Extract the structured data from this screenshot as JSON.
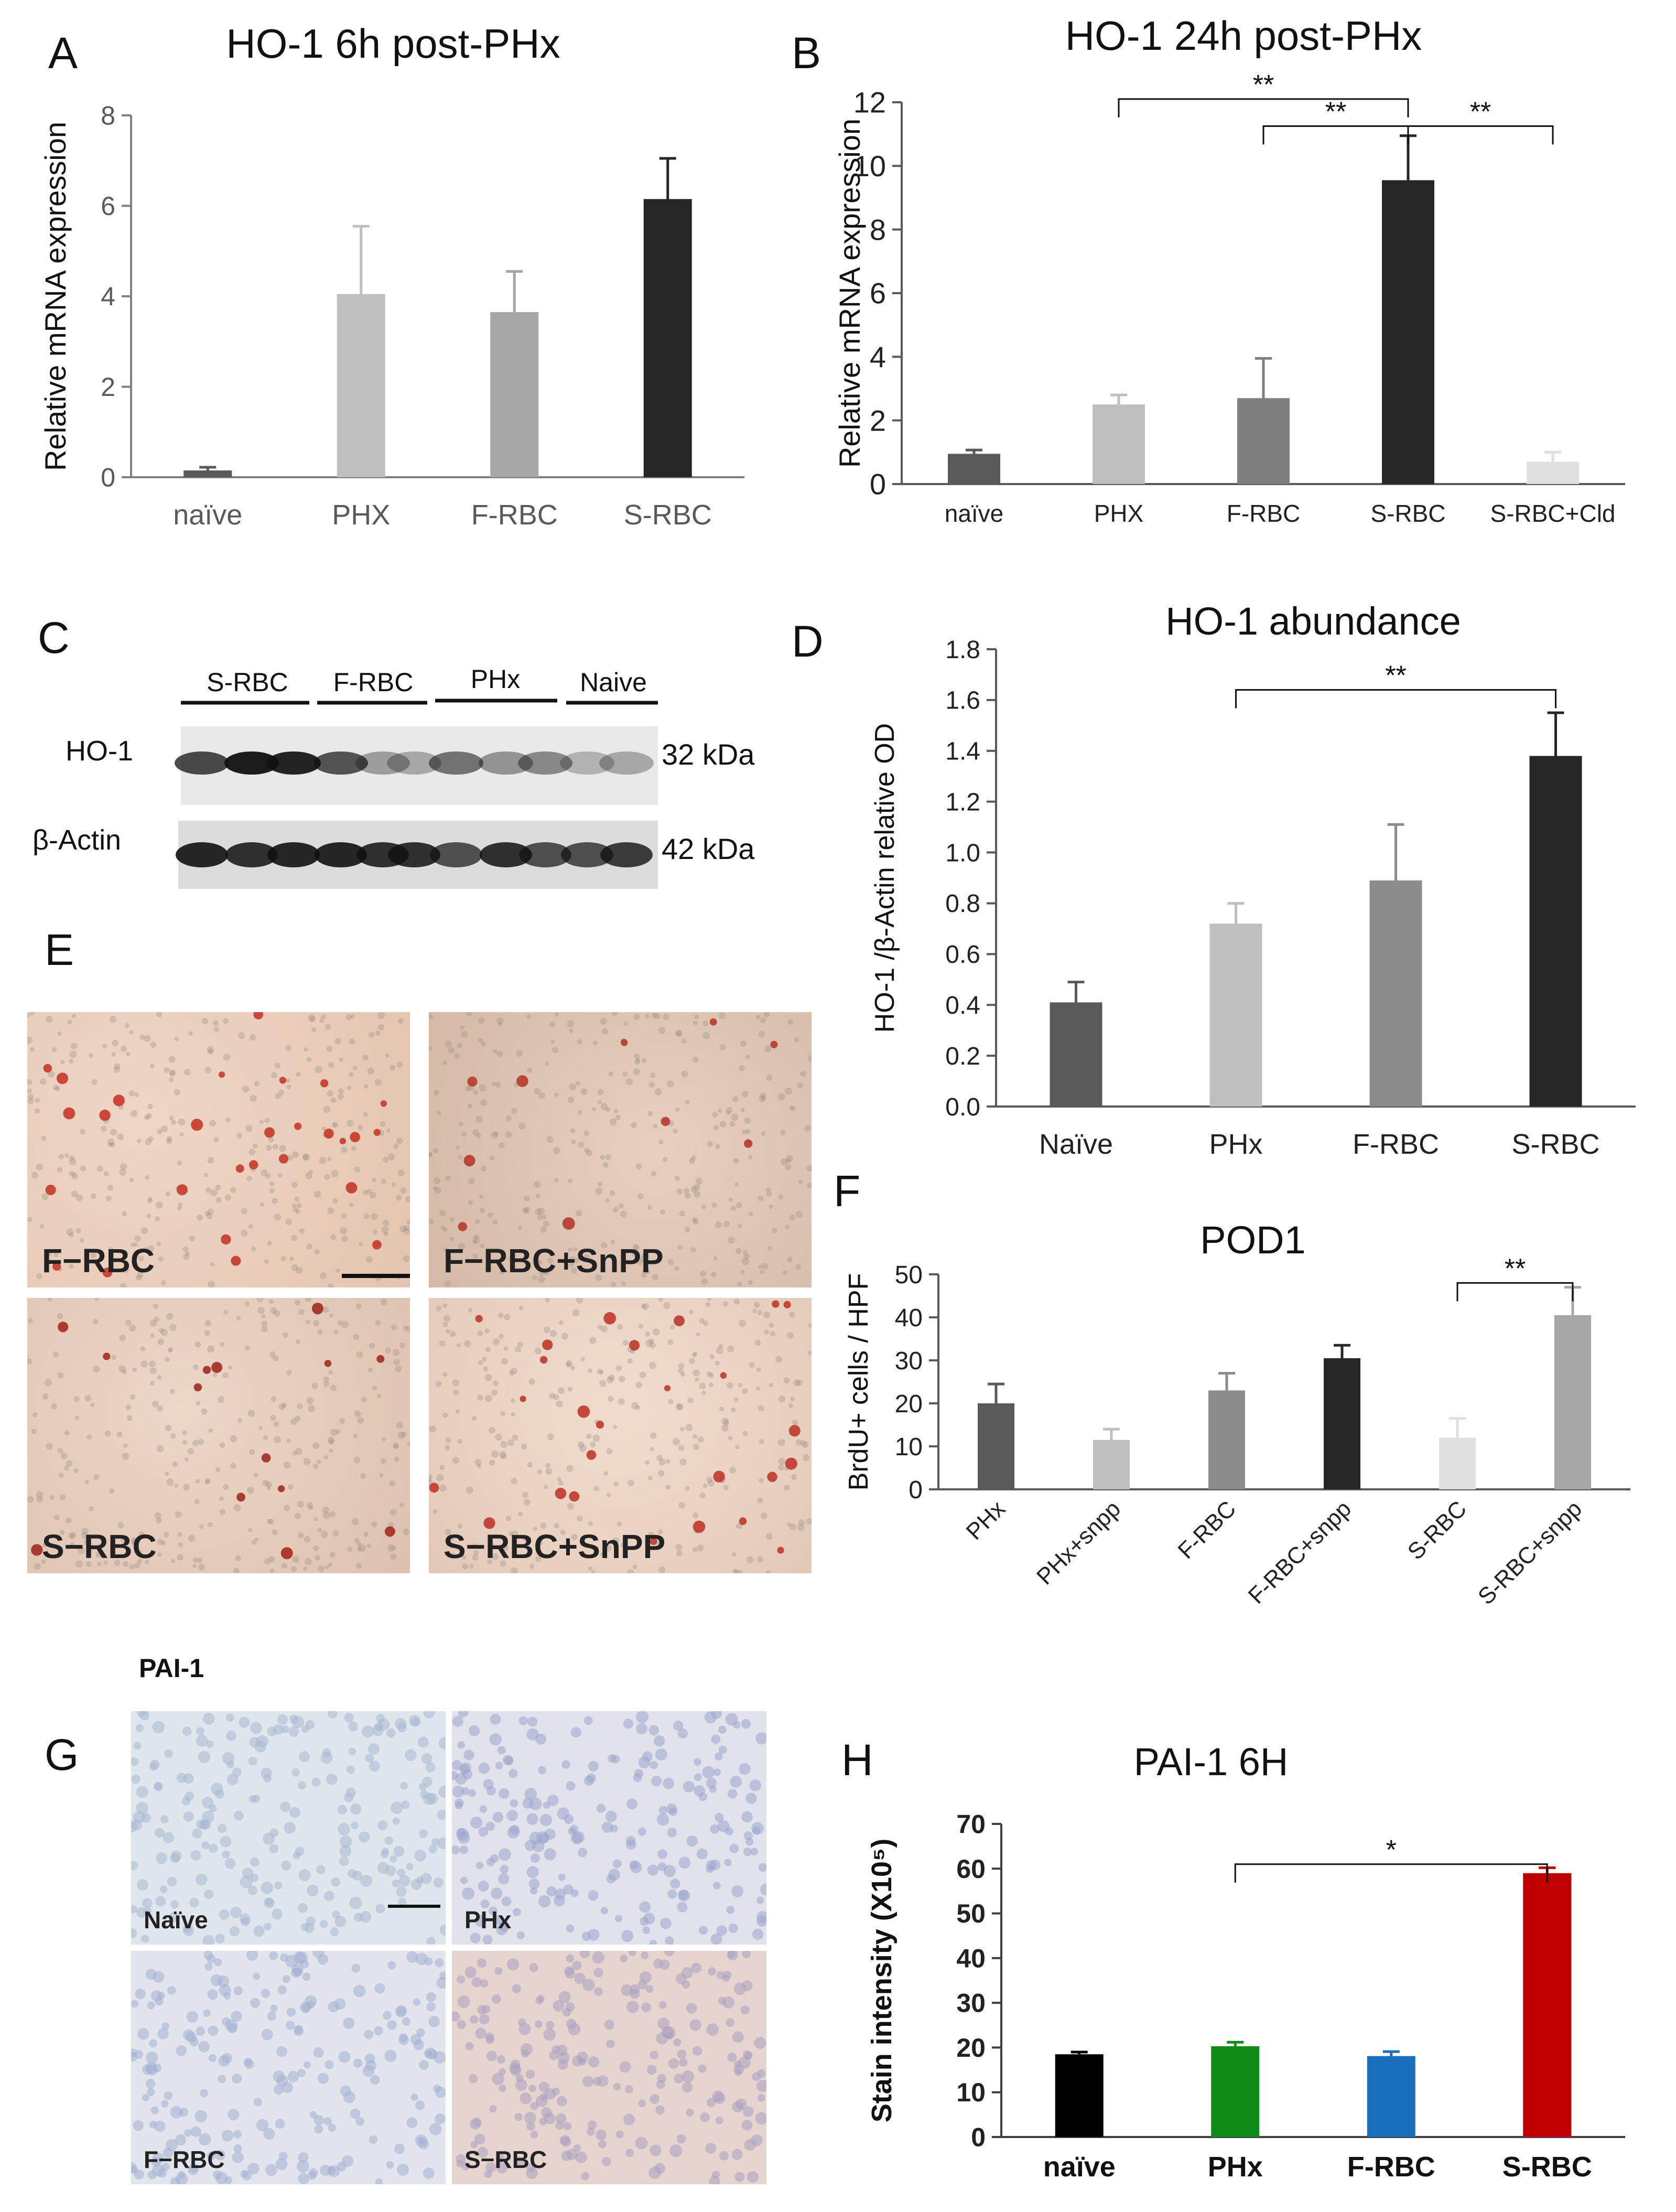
{
  "panel_letters": {
    "A": "A",
    "B": "B",
    "C": "C",
    "D": "D",
    "E": "E",
    "F": "F",
    "G": "G",
    "H": "H"
  },
  "colors": {
    "axis": "#7f7f7f",
    "text": "#404040",
    "sig": "#000000"
  },
  "chart_data": [
    {
      "id": "A",
      "type": "bar",
      "title": "HO-1 6h post-PHx",
      "ylabel": "Relative mRNA expression",
      "xlabel": "",
      "categories": [
        "naïve",
        "PHX",
        "F-RBC",
        "S-RBC"
      ],
      "ylim": [
        0,
        8
      ],
      "yticks": [
        "0",
        "2",
        "4",
        "6",
        "8"
      ],
      "values": [
        0.15,
        4.05,
        3.65,
        6.15
      ],
      "errors": [
        0.07,
        1.5,
        0.9,
        0.9
      ],
      "colors": [
        "#595959",
        "#bfbfbf",
        "#a6a6a6",
        "#262626"
      ],
      "significance": []
    },
    {
      "id": "B",
      "type": "bar",
      "title": "HO-1 24h post-PHx",
      "ylabel": "Relative mRNA expression",
      "xlabel": "",
      "categories": [
        "naïve",
        "PHX",
        "F-RBC",
        "S-RBC",
        "S-RBC+Cld"
      ],
      "ylim": [
        0,
        12
      ],
      "yticks": [
        "0",
        "2",
        "4",
        "6",
        "8",
        "10",
        "12"
      ],
      "values": [
        0.95,
        2.5,
        2.7,
        9.55,
        0.7
      ],
      "errors": [
        0.12,
        0.3,
        1.25,
        1.4,
        0.3
      ],
      "colors": [
        "#595959",
        "#bfbfbf",
        "#7f7f7f",
        "#262626",
        "#e0e0e0"
      ],
      "significance": [
        {
          "from": 1,
          "to": 3,
          "label": "**",
          "level": 12.1
        },
        {
          "from": 2,
          "to": 3,
          "label": "**",
          "level": 11.25
        },
        {
          "from": 3,
          "to": 4,
          "label": "**",
          "level": 11.25
        }
      ]
    },
    {
      "id": "D",
      "type": "bar",
      "title": "HO-1 abundance",
      "ylabel": "HO-1 /β-Actin relative OD",
      "xlabel": "",
      "categories": [
        "Naïve",
        "PHx",
        "F-RBC",
        "S-RBC"
      ],
      "ylim": [
        0,
        1.8
      ],
      "yticks": [
        "0.0",
        "0.2",
        "0.4",
        "0.6",
        "0.8",
        "1.0",
        "1.2",
        "1.4",
        "1.6",
        "1.8"
      ],
      "values": [
        0.41,
        0.72,
        0.89,
        1.38
      ],
      "errors": [
        0.08,
        0.08,
        0.22,
        0.17
      ],
      "colors": [
        "#595959",
        "#bfbfbf",
        "#8c8c8c",
        "#262626"
      ],
      "significance": [
        {
          "from": 1,
          "to": 3,
          "label": "**",
          "level": 1.64
        }
      ]
    },
    {
      "id": "F",
      "type": "bar",
      "title": "POD1",
      "ylabel": "BrdU+ cells  / HPF",
      "xlabel": "",
      "categories": [
        "PHx",
        "PHx+snpp",
        "F-RBC",
        "F-RBC+snpp",
        "S-RBC",
        "S-RBC+snpp"
      ],
      "rotated_labels": true,
      "ylim": [
        0,
        50
      ],
      "yticks": [
        "0",
        "10",
        "20",
        "30",
        "40",
        "50"
      ],
      "values": [
        20,
        11.5,
        23,
        30.5,
        12,
        40.5
      ],
      "errors": [
        4.5,
        2.5,
        4,
        3,
        4.5,
        6.5
      ],
      "colors": [
        "#595959",
        "#bfbfbf",
        "#8c8c8c",
        "#262626",
        "#e0e0e0",
        "#a6a6a6"
      ],
      "significance": [
        {
          "from": 4,
          "to": 5,
          "label": "**",
          "level": 48
        }
      ]
    },
    {
      "id": "H",
      "type": "bar",
      "title": "PAI-1 6H",
      "ylabel": "Stain intensity (X10⁵)",
      "xlabel": "",
      "categories": [
        "naïve",
        "PHx",
        "F-RBC",
        "S-RBC"
      ],
      "ylim": [
        0,
        70
      ],
      "yticks": [
        "0",
        "10",
        "20",
        "30",
        "40",
        "50",
        "60",
        "70"
      ],
      "values": [
        18.5,
        20.3,
        18.1,
        59
      ],
      "errors": [
        0.5,
        0.9,
        1,
        1.2
      ],
      "colors": [
        "#000000",
        "#0f8a17",
        "#1a6fbd",
        "#c00000"
      ],
      "significance": [
        {
          "from": 1,
          "to": 3,
          "label": "*",
          "level": 61
        }
      ],
      "bold_ticks": true
    }
  ],
  "blot": {
    "groups": [
      "S-RBC",
      "F-RBC",
      "PHx",
      "Naive"
    ],
    "rows": [
      {
        "name": "HO-1",
        "kda": "32 kDa"
      },
      {
        "name": "β-Actin",
        "kda": "42 kDa"
      }
    ]
  },
  "micrographs_E": {
    "labels": [
      "F−RBC",
      "F−RBC+SnPP",
      "S−RBC",
      "S−RBC+SnPP"
    ]
  },
  "micrographs_G": {
    "title": "PAI-1",
    "labels": [
      "Naïve",
      "PHx",
      "F−RBC",
      "S−RBC"
    ]
  }
}
